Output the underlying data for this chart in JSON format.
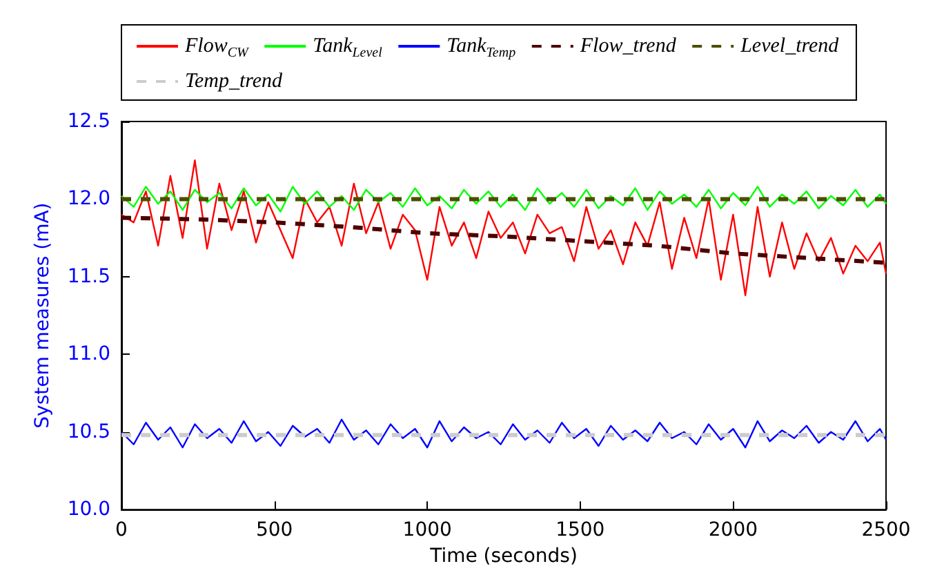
{
  "chart_data": {
    "type": "line",
    "xlabel": "Time (seconds)",
    "ylabel": "System measures (mA)",
    "x": [
      0,
      40,
      80,
      120,
      160,
      200,
      240,
      280,
      320,
      360,
      400,
      440,
      480,
      520,
      560,
      600,
      640,
      680,
      720,
      760,
      800,
      840,
      880,
      920,
      960,
      1000,
      1040,
      1080,
      1120,
      1160,
      1200,
      1240,
      1280,
      1320,
      1360,
      1400,
      1440,
      1480,
      1520,
      1560,
      1600,
      1640,
      1680,
      1720,
      1760,
      1800,
      1840,
      1880,
      1920,
      1960,
      2000,
      2040,
      2080,
      2120,
      2160,
      2200,
      2240,
      2280,
      2320,
      2360,
      2400,
      2440,
      2480,
      2500
    ],
    "series": [
      {
        "name": "Flow$_{CW}$",
        "color": "#ff0000",
        "line_style": "solid",
        "values": [
          11.9,
          11.85,
          12.05,
          11.7,
          12.15,
          11.75,
          12.25,
          11.68,
          12.1,
          11.8,
          12.05,
          11.72,
          11.98,
          11.8,
          11.62,
          12.0,
          11.85,
          11.95,
          11.7,
          12.1,
          11.78,
          11.98,
          11.68,
          11.9,
          11.8,
          11.48,
          11.95,
          11.7,
          11.85,
          11.62,
          11.92,
          11.75,
          11.85,
          11.65,
          11.9,
          11.78,
          11.82,
          11.6,
          11.95,
          11.68,
          11.8,
          11.58,
          11.85,
          11.7,
          11.98,
          11.55,
          11.88,
          11.62,
          12.0,
          11.48,
          11.9,
          11.38,
          11.95,
          11.5,
          11.85,
          11.55,
          11.78,
          11.6,
          11.75,
          11.52,
          11.7,
          11.6,
          11.72,
          11.52
        ]
      },
      {
        "name": "Tank$_{Level}$",
        "color": "#00ff00",
        "line_style": "solid",
        "values": [
          12.02,
          11.95,
          12.08,
          11.97,
          12.05,
          11.93,
          12.06,
          11.98,
          12.04,
          11.94,
          12.07,
          11.96,
          12.03,
          11.92,
          12.08,
          11.97,
          12.05,
          11.95,
          12.02,
          11.93,
          12.06,
          11.98,
          12.04,
          11.95,
          12.07,
          11.96,
          12.02,
          11.94,
          12.06,
          11.97,
          12.05,
          11.95,
          12.03,
          11.93,
          12.07,
          11.97,
          12.04,
          11.95,
          12.06,
          11.94,
          12.02,
          11.96,
          12.07,
          11.93,
          12.05,
          11.97,
          12.03,
          11.95,
          12.06,
          11.94,
          12.04,
          11.96,
          12.08,
          11.95,
          12.03,
          11.97,
          12.05,
          11.94,
          12.02,
          11.96,
          12.06,
          11.95,
          12.03,
          11.97
        ]
      },
      {
        "name": "Tank$_{Temp}$",
        "color": "#0000ff",
        "line_style": "solid",
        "values": [
          10.5,
          10.42,
          10.56,
          10.45,
          10.53,
          10.4,
          10.55,
          10.46,
          10.52,
          10.43,
          10.57,
          10.44,
          10.5,
          10.41,
          10.54,
          10.47,
          10.52,
          10.43,
          10.58,
          10.45,
          10.51,
          10.42,
          10.55,
          10.46,
          10.52,
          10.4,
          10.57,
          10.44,
          10.53,
          10.46,
          10.5,
          10.42,
          10.55,
          10.45,
          10.51,
          10.43,
          10.56,
          10.46,
          10.52,
          10.41,
          10.54,
          10.45,
          10.51,
          10.44,
          10.56,
          10.46,
          10.5,
          10.42,
          10.55,
          10.45,
          10.52,
          10.4,
          10.57,
          10.44,
          10.51,
          10.46,
          10.54,
          10.43,
          10.5,
          10.45,
          10.57,
          10.44,
          10.52,
          10.45
        ]
      },
      {
        "name": "Flow_trend",
        "color": "#4d0000",
        "line_style": "dashed",
        "x": [
          0,
          250,
          500,
          750,
          1000,
          1250,
          1500,
          1750,
          2000,
          2250,
          2500
        ],
        "values": [
          11.88,
          11.87,
          11.85,
          11.82,
          11.78,
          11.76,
          11.73,
          11.7,
          11.65,
          11.62,
          11.59
        ]
      },
      {
        "name": "Level_trend",
        "color": "#4d4d00",
        "line_style": "dashed",
        "x": [
          0,
          2500
        ],
        "values": [
          12.0,
          12.0
        ]
      },
      {
        "name": "Temp_trend",
        "color": "#cccccc",
        "line_style": "dashed",
        "x": [
          0,
          2500
        ],
        "values": [
          10.48,
          10.48
        ]
      }
    ],
    "xlim": [
      0,
      2500
    ],
    "xticks": [
      0,
      500,
      1000,
      1500,
      2000,
      2500
    ],
    "ylim": [
      10,
      12.5
    ],
    "yticks": [
      {
        "value": 10,
        "label": "10.0"
      },
      10.5,
      {
        "value": 11,
        "label": "11.0"
      },
      11.5,
      {
        "value": 12,
        "label": "12.0"
      },
      12.5
    ],
    "grid": false,
    "legend": "top",
    "marker": "none"
  }
}
